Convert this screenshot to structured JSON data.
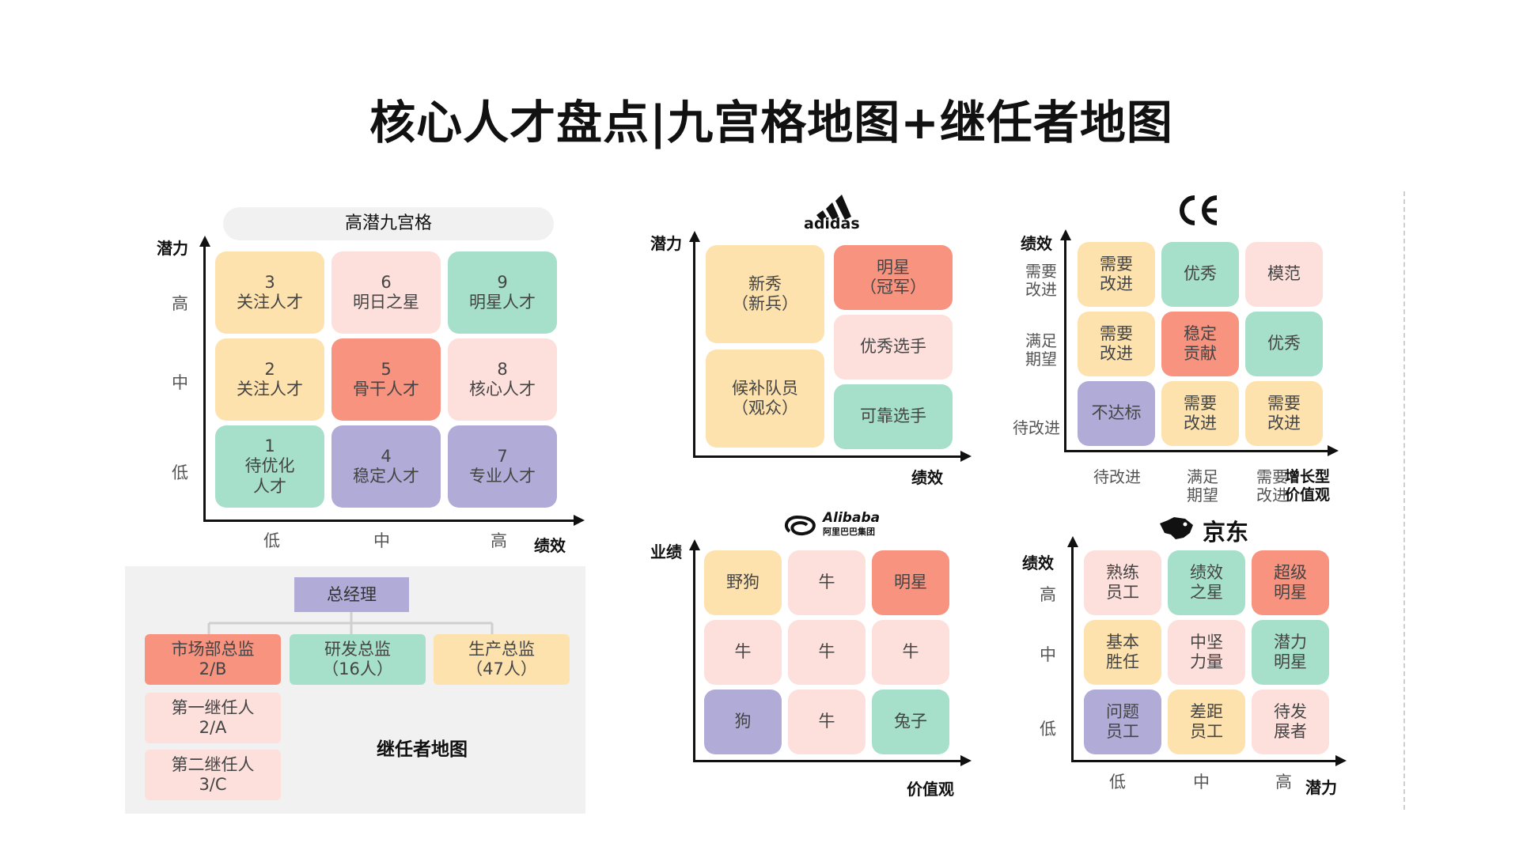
{
  "title": "核心人才盘点|九宫格地图+继任者地图",
  "nine_box": {
    "header": "高潜九宫格",
    "y_axis_label": "潜力",
    "x_axis_label": "绩效",
    "y_ticks": [
      "高",
      "中",
      "低"
    ],
    "x_ticks": [
      "低",
      "中",
      "高"
    ],
    "cells": [
      {
        "num": "3",
        "label": "关注人才",
        "color": "#fde2ae"
      },
      {
        "num": "6",
        "label": "明日之星",
        "color": "#fde0dc"
      },
      {
        "num": "9",
        "label": "明星人才",
        "color": "#a6dfca"
      },
      {
        "num": "2",
        "label": "关注人才",
        "color": "#fde2ae"
      },
      {
        "num": "5",
        "label": "骨干人才",
        "color": "#f7937f"
      },
      {
        "num": "8",
        "label": "核心人才",
        "color": "#fde0dc"
      },
      {
        "num": "1",
        "label": "待优化人才",
        "color": "#a6dfca"
      },
      {
        "num": "4",
        "label": "稳定人才",
        "color": "#b1abd8"
      },
      {
        "num": "7",
        "label": "专业人才",
        "color": "#b1abd8"
      }
    ]
  },
  "succession": {
    "title": "继任者地图",
    "gm": "总经理",
    "roles": [
      {
        "name": "市场部总监",
        "sub": "2/B",
        "color": "#f7937f"
      },
      {
        "name": "研发总监",
        "sub": "（16人）",
        "color": "#a6dfca"
      },
      {
        "name": "生产总监",
        "sub": "（47人）",
        "color": "#fde2ae"
      }
    ],
    "successors": [
      {
        "name": "第一继任人",
        "sub": "2/A"
      },
      {
        "name": "第二继任人",
        "sub": "3/C"
      }
    ]
  },
  "adidas": {
    "logo": "adidas",
    "y_axis_label": "潜力",
    "x_axis_label": "绩效",
    "left": [
      {
        "line1": "新秀",
        "line2": "（新兵）"
      },
      {
        "line1": "候补队员",
        "line2": "（观众）"
      }
    ],
    "right": [
      {
        "line1": "明星",
        "line2": "（冠军）"
      },
      {
        "line1": "优秀选手",
        "line2": ""
      },
      {
        "line1": "可靠选手",
        "line2": ""
      }
    ]
  },
  "ge": {
    "logo": "GE",
    "y_axis_label": "绩效",
    "y_ticks": [
      "需要\n改进",
      "满足\n期望",
      "待改进"
    ],
    "x_ticks": [
      "待改进",
      "满足\n期望",
      "需要\n改进"
    ],
    "x_axis_label": "增长型\n价值观",
    "cells": [
      "需要\n改进",
      "优秀",
      "模范",
      "需要\n改进",
      "稳定\n贡献",
      "优秀",
      "不达标",
      "需要\n改进",
      "需要\n改进"
    ]
  },
  "alibaba": {
    "logo_en": "Alibaba",
    "logo_cn": "阿里巴巴集团",
    "y_axis_label": "业绩",
    "x_axis_label": "价值观",
    "cells": [
      "野狗",
      "牛",
      "明星",
      "牛",
      "牛",
      "牛",
      "狗",
      "牛",
      "兔子"
    ]
  },
  "jd": {
    "logo": "京东",
    "y_axis_label": "绩效",
    "x_axis_label": "潜力",
    "y_ticks": [
      "高",
      "中",
      "低"
    ],
    "x_ticks": [
      "低",
      "中",
      "高"
    ],
    "cells": [
      "熟练\n员工",
      "绩效\n之星",
      "超级\n明星",
      "基本\n胜任",
      "中坚\n力量",
      "潜力\n明星",
      "问题\n员工",
      "差距\n员工",
      "待发\n展者"
    ]
  }
}
